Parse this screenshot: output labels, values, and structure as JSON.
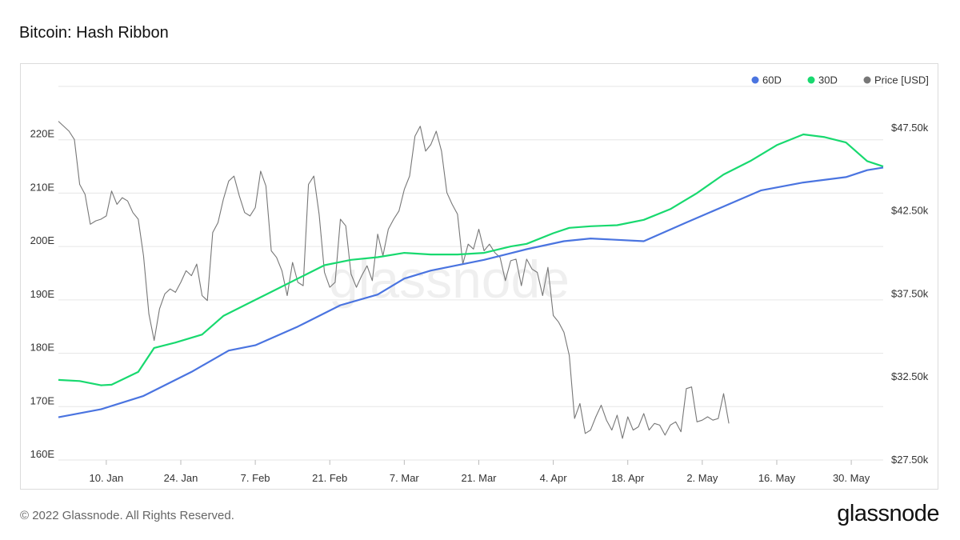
{
  "title": "Bitcoin: Hash Ribbon",
  "footer": {
    "copyright": "© 2022 Glassnode. All Rights Reserved.",
    "logo": "glassnode"
  },
  "watermark": "glassnode",
  "chart_data": {
    "type": "line",
    "title": "Bitcoin: Hash Ribbon",
    "legend_position": "top-right",
    "grid": true,
    "x_ticks": [
      {
        "label": "10. Jan",
        "day": 9
      },
      {
        "label": "24. Jan",
        "day": 23
      },
      {
        "label": "7. Feb",
        "day": 37
      },
      {
        "label": "21. Feb",
        "day": 51
      },
      {
        "label": "7. Mar",
        "day": 65
      },
      {
        "label": "21. Mar",
        "day": 79
      },
      {
        "label": "4. Apr",
        "day": 93
      },
      {
        "label": "18. Apr",
        "day": 107
      },
      {
        "label": "2. May",
        "day": 121
      },
      {
        "label": "16. May",
        "day": 135
      },
      {
        "label": "30. May",
        "day": 149
      }
    ],
    "x_range_days": [
      0,
      155
    ],
    "y_left": {
      "range": [
        160,
        230
      ],
      "ticks": [
        160,
        170,
        180,
        190,
        200,
        210,
        220
      ],
      "tick_labels": [
        "160E",
        "170E",
        "180E",
        "190E",
        "200E",
        "210E",
        "220E"
      ]
    },
    "y_right": {
      "range": [
        27500,
        50000
      ],
      "ticks": [
        27500,
        32500,
        37500,
        42500,
        47500
      ],
      "tick_labels": [
        "$27.50k",
        "$32.50k",
        "$37.50k",
        "$42.50k",
        "$47.50k"
      ]
    },
    "series": [
      {
        "name": "60D",
        "color": "#4a74e0",
        "axis": "left",
        "points": [
          [
            0,
            168
          ],
          [
            8,
            169.5
          ],
          [
            16,
            172
          ],
          [
            25,
            176.5
          ],
          [
            32,
            180.5
          ],
          [
            37,
            181.5
          ],
          [
            45,
            185
          ],
          [
            53,
            189
          ],
          [
            60,
            191
          ],
          [
            65,
            194
          ],
          [
            70,
            195.5
          ],
          [
            80,
            197.5
          ],
          [
            88,
            199.5
          ],
          [
            95,
            201
          ],
          [
            100,
            201.5
          ],
          [
            110,
            201
          ],
          [
            118,
            204.5
          ],
          [
            125,
            207.5
          ],
          [
            132,
            210.5
          ],
          [
            140,
            212
          ],
          [
            148,
            213
          ],
          [
            152,
            214.3
          ],
          [
            155,
            214.8
          ]
        ]
      },
      {
        "name": "30D",
        "color": "#18d96f",
        "axis": "left",
        "points": [
          [
            0,
            175
          ],
          [
            4,
            174.8
          ],
          [
            8,
            174
          ],
          [
            10,
            174.1
          ],
          [
            15,
            176.5
          ],
          [
            18,
            181
          ],
          [
            22,
            182
          ],
          [
            27,
            183.5
          ],
          [
            31,
            187
          ],
          [
            35,
            189
          ],
          [
            40,
            191.5
          ],
          [
            45,
            194
          ],
          [
            50,
            196.5
          ],
          [
            55,
            197.5
          ],
          [
            60,
            198
          ],
          [
            65,
            198.8
          ],
          [
            70,
            198.5
          ],
          [
            75,
            198.5
          ],
          [
            80,
            198.8
          ],
          [
            85,
            200
          ],
          [
            88,
            200.5
          ],
          [
            93,
            202.5
          ],
          [
            96,
            203.5
          ],
          [
            100,
            203.8
          ],
          [
            105,
            204
          ],
          [
            110,
            205
          ],
          [
            115,
            207
          ],
          [
            120,
            210
          ],
          [
            125,
            213.5
          ],
          [
            130,
            216
          ],
          [
            135,
            219
          ],
          [
            140,
            221
          ],
          [
            144,
            220.5
          ],
          [
            148,
            219.5
          ],
          [
            152,
            216
          ],
          [
            155,
            215
          ]
        ]
      },
      {
        "name": "Price [USD]",
        "color": "#777777",
        "axis": "right",
        "points": [
          [
            0,
            47900
          ],
          [
            2,
            47300
          ],
          [
            3,
            46800
          ],
          [
            4,
            44100
          ],
          [
            5,
            43500
          ],
          [
            6,
            41700
          ],
          [
            7,
            41900
          ],
          [
            8,
            42000
          ],
          [
            9,
            42200
          ],
          [
            10,
            43700
          ],
          [
            11,
            42900
          ],
          [
            12,
            43300
          ],
          [
            13,
            43100
          ],
          [
            14,
            42400
          ],
          [
            15,
            42000
          ],
          [
            16,
            39800
          ],
          [
            17,
            36300
          ],
          [
            18,
            34700
          ],
          [
            19,
            36600
          ],
          [
            20,
            37500
          ],
          [
            21,
            37800
          ],
          [
            22,
            37600
          ],
          [
            23,
            38200
          ],
          [
            24,
            38900
          ],
          [
            25,
            38600
          ],
          [
            26,
            39300
          ],
          [
            27,
            37400
          ],
          [
            28,
            37100
          ],
          [
            29,
            41200
          ],
          [
            30,
            41800
          ],
          [
            31,
            43200
          ],
          [
            32,
            44300
          ],
          [
            33,
            44600
          ],
          [
            34,
            43400
          ],
          [
            35,
            42400
          ],
          [
            36,
            42200
          ],
          [
            37,
            42700
          ],
          [
            38,
            44900
          ],
          [
            39,
            44000
          ],
          [
            40,
            40100
          ],
          [
            41,
            39700
          ],
          [
            42,
            38900
          ],
          [
            43,
            37400
          ],
          [
            44,
            39400
          ],
          [
            45,
            38200
          ],
          [
            46,
            38000
          ],
          [
            47,
            44100
          ],
          [
            48,
            44600
          ],
          [
            49,
            42300
          ],
          [
            50,
            38800
          ],
          [
            51,
            37900
          ],
          [
            52,
            38200
          ],
          [
            53,
            42000
          ],
          [
            54,
            41600
          ],
          [
            55,
            38700
          ],
          [
            56,
            37900
          ],
          [
            57,
            38600
          ],
          [
            58,
            39200
          ],
          [
            59,
            38300
          ],
          [
            60,
            41100
          ],
          [
            61,
            39800
          ],
          [
            62,
            41400
          ],
          [
            63,
            42000
          ],
          [
            64,
            42500
          ],
          [
            65,
            43800
          ],
          [
            66,
            44600
          ],
          [
            67,
            47000
          ],
          [
            68,
            47600
          ],
          [
            69,
            46100
          ],
          [
            70,
            46500
          ],
          [
            71,
            47300
          ],
          [
            72,
            46100
          ],
          [
            73,
            43600
          ],
          [
            74,
            42900
          ],
          [
            75,
            42300
          ],
          [
            76,
            39300
          ],
          [
            77,
            40500
          ],
          [
            78,
            40200
          ],
          [
            79,
            41400
          ],
          [
            80,
            40100
          ],
          [
            81,
            40500
          ],
          [
            82,
            40000
          ],
          [
            83,
            39700
          ],
          [
            84,
            38300
          ],
          [
            85,
            39500
          ],
          [
            86,
            39600
          ],
          [
            87,
            38000
          ],
          [
            88,
            39600
          ],
          [
            89,
            39000
          ],
          [
            90,
            38800
          ],
          [
            91,
            37400
          ],
          [
            92,
            39100
          ],
          [
            93,
            36200
          ],
          [
            94,
            35800
          ],
          [
            95,
            35200
          ],
          [
            96,
            33800
          ],
          [
            97,
            30000
          ],
          [
            98,
            30900
          ],
          [
            99,
            29100
          ],
          [
            100,
            29300
          ],
          [
            101,
            30100
          ],
          [
            102,
            30800
          ],
          [
            103,
            29900
          ],
          [
            104,
            29300
          ],
          [
            105,
            30200
          ],
          [
            106,
            28800
          ],
          [
            107,
            30100
          ],
          [
            108,
            29300
          ],
          [
            109,
            29500
          ],
          [
            110,
            30300
          ],
          [
            111,
            29300
          ],
          [
            112,
            29700
          ],
          [
            113,
            29600
          ],
          [
            114,
            29000
          ],
          [
            115,
            29600
          ],
          [
            116,
            29800
          ],
          [
            117,
            29200
          ],
          [
            118,
            31800
          ],
          [
            119,
            31900
          ],
          [
            120,
            29800
          ],
          [
            121,
            29900
          ],
          [
            122,
            30100
          ],
          [
            123,
            29900
          ],
          [
            124,
            30000
          ],
          [
            125,
            31500
          ],
          [
            126,
            29700
          ]
        ]
      }
    ]
  }
}
